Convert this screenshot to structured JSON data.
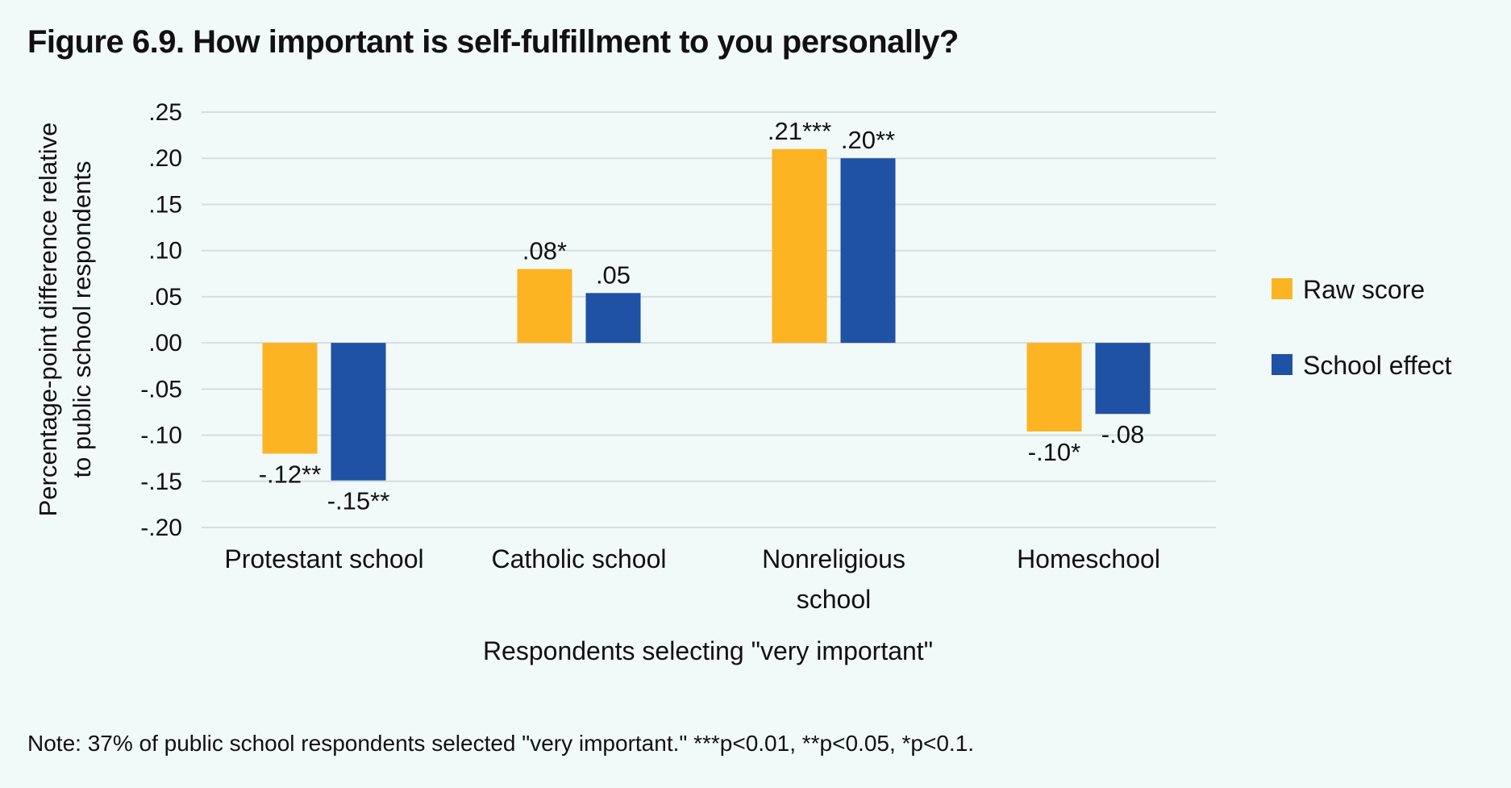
{
  "chart_data": {
    "type": "bar",
    "title": "Figure 6.9. How important is self-fulfillment to you personally?",
    "ylabel_lines": [
      "Percentage-point difference relative",
      "to public school respondents"
    ],
    "xlabel": "Respondents selecting \"very important\"",
    "categories": [
      [
        "Protestant school"
      ],
      [
        "Catholic school"
      ],
      [
        "Nonreligious",
        "school"
      ],
      [
        "Homeschool"
      ]
    ],
    "series": [
      {
        "name": "Raw score",
        "color": "#fdb423",
        "values": [
          -0.12,
          0.08,
          0.21,
          -0.096
        ],
        "labels": [
          "-.12**",
          ".08*",
          ".21***",
          "-.10*"
        ]
      },
      {
        "name": "School effect",
        "color": "#1f51a4",
        "values": [
          -0.149,
          0.054,
          0.2,
          -0.077
        ],
        "labels": [
          "-.15**",
          ".05",
          ".20**",
          "-.08"
        ]
      }
    ],
    "yticks": [
      0.25,
      0.2,
      0.15,
      0.1,
      0.05,
      0.0,
      -0.05,
      -0.1,
      -0.15,
      -0.2
    ],
    "ytick_labels": [
      ".25",
      ".20",
      ".15",
      ".10",
      ".05",
      ".00",
      "-.05",
      "-.10",
      "-.15",
      "-.20"
    ],
    "ylim": [
      -0.2,
      0.25
    ],
    "grid": true,
    "legend_position": "right"
  },
  "note": "Note: 37% of public school respondents selected \"very important.\" ***p<0.01, **p<0.05, *p<0.1."
}
